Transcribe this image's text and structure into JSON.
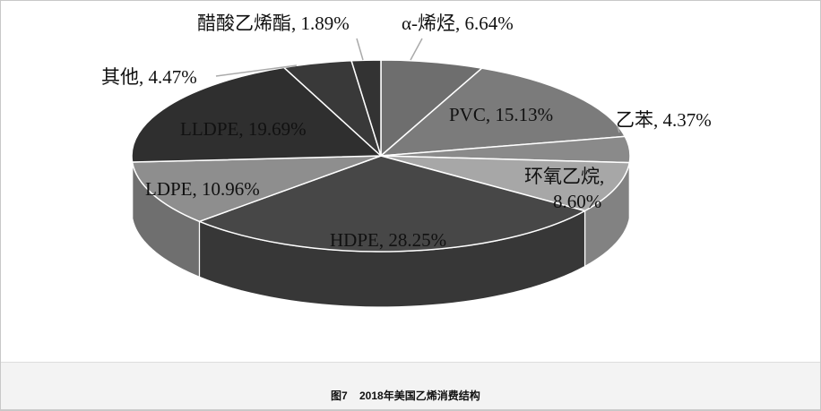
{
  "chart_data": {
    "type": "pie",
    "style": "3d",
    "start": "top, clockwise",
    "categories": [
      "α-烯烃",
      "PVC",
      "乙苯",
      "环氧乙烷",
      "HDPE",
      "LDPE",
      "LLDPE",
      "其他",
      "醋酸乙烯酯"
    ],
    "values": [
      6.64,
      15.13,
      4.37,
      8.6,
      28.25,
      10.96,
      19.69,
      4.47,
      1.89
    ],
    "labels": [
      "α-烯烃, 6.64%",
      "PVC, 15.13%",
      "乙苯, 4.37%",
      "环氧乙烷,",
      "8.60%",
      "HDPE, 28.25%",
      "LDPE, 10.96%",
      "LLDPE, 19.69%",
      "其他, 4.47%",
      "醋酸乙烯酯, 1.89%"
    ],
    "colors": [
      "#6e6e6e",
      "#7b7b7b",
      "#8a8a8a",
      "#a7a7a7",
      "#474747",
      "#8e8e8e",
      "#2f2f2f",
      "#393939",
      "#333333"
    ]
  },
  "caption": {
    "figure": "图7",
    "title": "2018年美国乙烯消费结构"
  }
}
